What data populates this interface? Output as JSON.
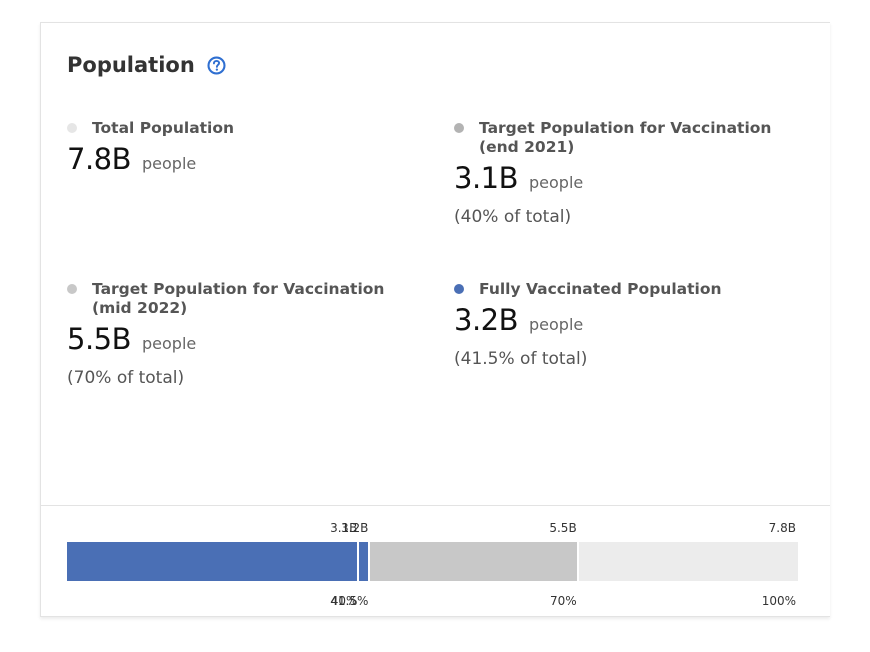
{
  "card": {
    "title": "Population"
  },
  "stats": {
    "total": {
      "label": "Total Population",
      "value": "7.8B",
      "unit": "people",
      "dot_color": "#e6e6e6"
    },
    "target_2021": {
      "label_line1": "Target Population for Vaccination",
      "label_line2": "(end 2021)",
      "value": "3.1B",
      "unit": "people",
      "percent": "(40% of total)",
      "dot_color": "#b3b3b3"
    },
    "target_2022": {
      "label_line1": "Target Population for Vaccination",
      "label_line2": "(mid 2022)",
      "value": "5.5B",
      "unit": "people",
      "percent": "(70% of total)",
      "dot_color": "#c8c8c8"
    },
    "fully_vaccinated": {
      "label": "Fully Vaccinated Population",
      "value": "3.2B",
      "unit": "people",
      "percent": "(41.5% of total)",
      "dot_color": "#4a6fb5"
    }
  },
  "colors": {
    "accent_help": "#2f6fd1",
    "vaccinated": "#4a6fb5",
    "target_mid_2022": "#c8c8c8",
    "total": "#ececec"
  },
  "chart_data": {
    "type": "bar",
    "orientation": "horizontal-stacked-progress",
    "segments": [
      {
        "value_label": "3.1B",
        "percent_label": "40%",
        "percent": 40,
        "color": "#4a6fb5"
      },
      {
        "value_label": "3.2B",
        "percent_label": "41.5%",
        "percent": 41.5,
        "color": "#4a6fb5"
      },
      {
        "value_label": "5.5B",
        "percent_label": "70%",
        "percent": 70,
        "color": "#c8c8c8"
      },
      {
        "value_label": "7.8B",
        "percent_label": "100%",
        "percent": 100,
        "color": "#ececec"
      }
    ],
    "xlim": [
      0,
      100
    ]
  }
}
